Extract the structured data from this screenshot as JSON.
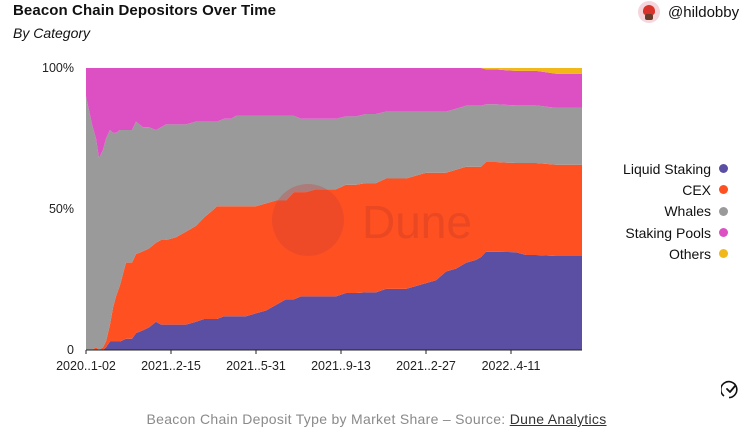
{
  "header": {
    "title": "Beacon Chain Depositors Over Time",
    "subtitle": "By Category",
    "author": "@hildobby"
  },
  "footer": {
    "caption": "Beacon Chain Deposit Type by Market Share – Source:",
    "link_label": "Dune Analytics"
  },
  "watermark": "Dune",
  "colors": {
    "Liquid Staking": "#5b4fa3",
    "CEX": "#fe5020",
    "Whales": "#9a9a9a",
    "Staking Pools": "#dd50c4",
    "Others": "#f2b81a"
  },
  "chart_data": {
    "type": "area",
    "stacked": true,
    "normalized": true,
    "title": "Beacon Chain Depositors Over Time",
    "subtitle": "By Category",
    "x_tick_labels": [
      "2020..1-02",
      "2021..2-15",
      "2021..5-31",
      "2021..9-13",
      "2021..2-27",
      "2022..4-11"
    ],
    "y_tick_labels": [
      "100%",
      "50%",
      "0"
    ],
    "ylim": [
      0,
      100
    ],
    "legend_position": "right",
    "grid": false,
    "x": [
      0,
      3,
      6,
      10,
      13,
      17,
      20,
      24,
      27,
      30,
      34,
      40,
      46,
      50,
      57,
      63,
      70,
      75,
      80,
      90,
      100,
      110,
      118,
      125,
      131,
      138,
      142,
      145,
      150,
      160,
      170,
      180,
      190,
      200,
      208,
      215,
      220,
      230,
      240,
      250,
      260,
      270,
      280,
      290,
      300,
      310,
      320,
      330,
      340,
      350,
      360,
      370,
      380,
      390,
      395,
      400,
      405,
      410,
      420,
      430,
      440,
      450,
      460,
      470,
      480,
      496
    ],
    "series": [
      {
        "name": "Liquid Staking",
        "values": [
          0,
          0,
          0,
          0,
          0,
          0,
          1,
          3,
          3,
          3,
          3,
          4,
          4,
          6,
          7,
          8,
          10,
          9,
          9,
          9,
          9,
          10,
          11,
          11,
          11,
          12,
          12,
          12,
          12,
          12,
          13,
          14,
          16,
          18,
          18,
          19,
          19,
          19,
          19,
          19,
          20,
          20,
          20,
          20,
          21,
          21,
          21,
          22,
          23,
          24,
          27,
          28,
          30,
          31,
          32,
          34,
          34,
          34,
          34,
          34,
          33,
          33,
          33,
          33,
          33,
          33
        ]
      },
      {
        "name": "CEX",
        "values": [
          0,
          0,
          0,
          1,
          0,
          1,
          2,
          6,
          12,
          16,
          20,
          27,
          27,
          28,
          28,
          28,
          28,
          30,
          30,
          31,
          33,
          34,
          36,
          38,
          40,
          39,
          39,
          39,
          39,
          39,
          38,
          38,
          37,
          35,
          38,
          37,
          37,
          38,
          38,
          38,
          38,
          38,
          38,
          38,
          38,
          38,
          38,
          38,
          38,
          37,
          34,
          34,
          33,
          32,
          31,
          31,
          31,
          31,
          31,
          31,
          32,
          32,
          32,
          32,
          32,
          32
        ]
      },
      {
        "name": "Whales",
        "values": [
          90,
          85,
          80,
          74,
          68,
          70,
          72,
          69,
          62,
          58,
          55,
          47,
          47,
          47,
          44,
          43,
          40,
          40,
          41,
          40,
          38,
          37,
          34,
          32,
          30,
          31,
          31,
          31,
          32,
          32,
          32,
          31,
          30,
          30,
          27,
          26,
          26,
          25,
          25,
          25,
          24,
          24,
          24,
          24,
          23,
          23,
          23,
          22,
          21,
          21,
          21,
          21,
          21,
          21,
          21,
          20,
          20,
          20,
          20,
          20,
          20,
          20,
          20,
          20,
          20,
          20
        ]
      },
      {
        "name": "Staking Pools",
        "values": [
          10,
          15,
          20,
          25,
          32,
          29,
          25,
          22,
          23,
          23,
          22,
          22,
          22,
          19,
          21,
          21,
          22,
          21,
          20,
          20,
          20,
          19,
          19,
          19,
          19,
          18,
          18,
          18,
          17,
          17,
          17,
          17,
          17,
          17,
          17,
          18,
          18,
          18,
          18,
          18,
          17,
          17,
          16,
          16,
          15,
          15,
          15,
          15,
          15,
          15,
          15,
          14,
          13,
          13,
          13,
          12,
          12,
          12,
          12,
          12,
          12,
          12,
          12,
          12,
          12,
          12
        ]
      },
      {
        "name": "Others",
        "values": [
          0,
          0,
          0,
          0,
          0,
          0,
          0,
          0,
          0,
          0,
          0,
          0,
          0,
          0,
          0,
          0,
          0,
          0,
          0,
          0,
          0,
          0,
          0,
          0,
          0,
          0,
          0,
          0,
          0,
          0,
          0,
          0,
          0,
          0,
          0,
          0,
          0,
          0,
          0,
          0,
          0,
          0,
          0,
          0,
          0,
          0,
          0,
          0,
          0,
          0,
          0,
          0,
          0,
          0,
          0,
          0.5,
          0.5,
          0.5,
          0.8,
          1,
          1,
          1,
          1.5,
          2,
          2,
          2
        ]
      }
    ]
  }
}
